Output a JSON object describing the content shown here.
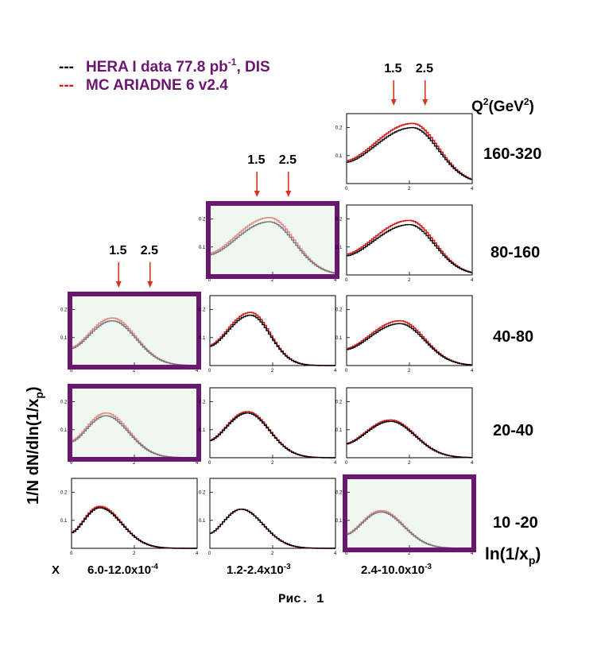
{
  "legend": {
    "data_prefix": "---",
    "data_label": "HERA I data 77.8 pb",
    "data_sup": "-1",
    "data_suffix": ", DIS",
    "mc_prefix": "---",
    "mc_label": "MC ARIADNE 6 v2.4",
    "data_color": "#000000",
    "mc_color": "#d81b1b",
    "label_color": "#6b1670"
  },
  "y_axis_label": "1/N dN/dln(1/x",
  "y_axis_label_sub": "p",
  "y_axis_label_end": ")",
  "q2_header": "Q",
  "q2_header_sup": "2",
  "q2_header_mid": "(GeV",
  "q2_header_sup2": "2",
  "q2_header_end": ")",
  "q2_bins": [
    "160-320",
    "80-160",
    "40-80",
    "20-40",
    "10 -20"
  ],
  "x_axis_title": "ln(1/x",
  "x_axis_title_sub": "p",
  "x_axis_title_end": ")",
  "x_prefix": "X",
  "x_bins": [
    {
      "base": "6.0-12.0x10",
      "exp": "-4"
    },
    {
      "base": "1.2-2.4x10",
      "exp": "-3"
    },
    {
      "base": "2.4-10.0x10",
      "exp": "-3"
    }
  ],
  "arrow_values": [
    "1.5",
    "2.5"
  ],
  "caption": "Рис. 1",
  "colors": {
    "frame_highlight": "#6b1670",
    "panel_fill_highlight": "#eef8f0",
    "arrow": "#d8321e",
    "data_highlight": "#777777",
    "mc_highlight": "#e88a8a"
  },
  "chart_data": {
    "type": "line",
    "xlabel": "ln(1/x_p)",
    "ylabel": "1/N dN/dln(1/x_p)",
    "xlim": [
      0,
      4
    ],
    "ylim": [
      0,
      0.25
    ],
    "x_ticks": [
      "0",
      "2",
      "4"
    ],
    "y_ticks": [
      "0.1",
      "0.2"
    ],
    "columns": [
      "6.0-12.0x10^-4",
      "1.2-2.4x10^-3",
      "2.4-10.0x10^-3"
    ],
    "rows": [
      "160-320",
      "80-160",
      "40-80",
      "20-40",
      "10 -20"
    ],
    "panels": [
      {
        "row": 0,
        "col": 2,
        "highlight": false,
        "arrows": true,
        "peak": 2.1,
        "width": 0.82,
        "data_amp": 0.2,
        "mc_amp": 0.215
      },
      {
        "row": 1,
        "col": 1,
        "highlight": true,
        "arrows": true,
        "peak": 1.9,
        "width": 0.8,
        "data_amp": 0.19,
        "mc_amp": 0.205
      },
      {
        "row": 1,
        "col": 2,
        "highlight": false,
        "arrows": false,
        "peak": 2.0,
        "width": 0.8,
        "data_amp": 0.18,
        "mc_amp": 0.195
      },
      {
        "row": 2,
        "col": 0,
        "highlight": true,
        "arrows": true,
        "peak": 1.3,
        "width": 0.75,
        "data_amp": 0.16,
        "mc_amp": 0.17
      },
      {
        "row": 2,
        "col": 1,
        "highlight": false,
        "arrows": false,
        "peak": 1.3,
        "width": 0.62,
        "data_amp": 0.18,
        "mc_amp": 0.19
      },
      {
        "row": 2,
        "col": 2,
        "highlight": false,
        "arrows": false,
        "peak": 1.7,
        "width": 0.78,
        "data_amp": 0.15,
        "mc_amp": 0.16
      },
      {
        "row": 3,
        "col": 0,
        "highlight": true,
        "arrows": false,
        "peak": 1.1,
        "width": 0.72,
        "data_amp": 0.15,
        "mc_amp": 0.16
      },
      {
        "row": 3,
        "col": 1,
        "highlight": false,
        "arrows": false,
        "peak": 1.2,
        "width": 0.7,
        "data_amp": 0.16,
        "mc_amp": 0.165
      },
      {
        "row": 3,
        "col": 2,
        "highlight": false,
        "arrows": false,
        "peak": 1.4,
        "width": 0.78,
        "data_amp": 0.13,
        "mc_amp": 0.135
      },
      {
        "row": 4,
        "col": 0,
        "highlight": false,
        "arrows": false,
        "peak": 0.9,
        "width": 0.7,
        "data_amp": 0.145,
        "mc_amp": 0.15
      },
      {
        "row": 4,
        "col": 1,
        "highlight": false,
        "arrows": false,
        "peak": 1.0,
        "width": 0.7,
        "data_amp": 0.14,
        "mc_amp": 0.14
      },
      {
        "row": 4,
        "col": 2,
        "highlight": true,
        "arrows": false,
        "peak": 1.1,
        "width": 0.72,
        "data_amp": 0.13,
        "mc_amp": 0.135
      }
    ],
    "series": [
      {
        "name": "HERA I data 77.8 pb-1, DIS",
        "color": "#000000"
      },
      {
        "name": "MC ARIADNE 6 v2.4",
        "color": "#d81b1b"
      }
    ]
  }
}
